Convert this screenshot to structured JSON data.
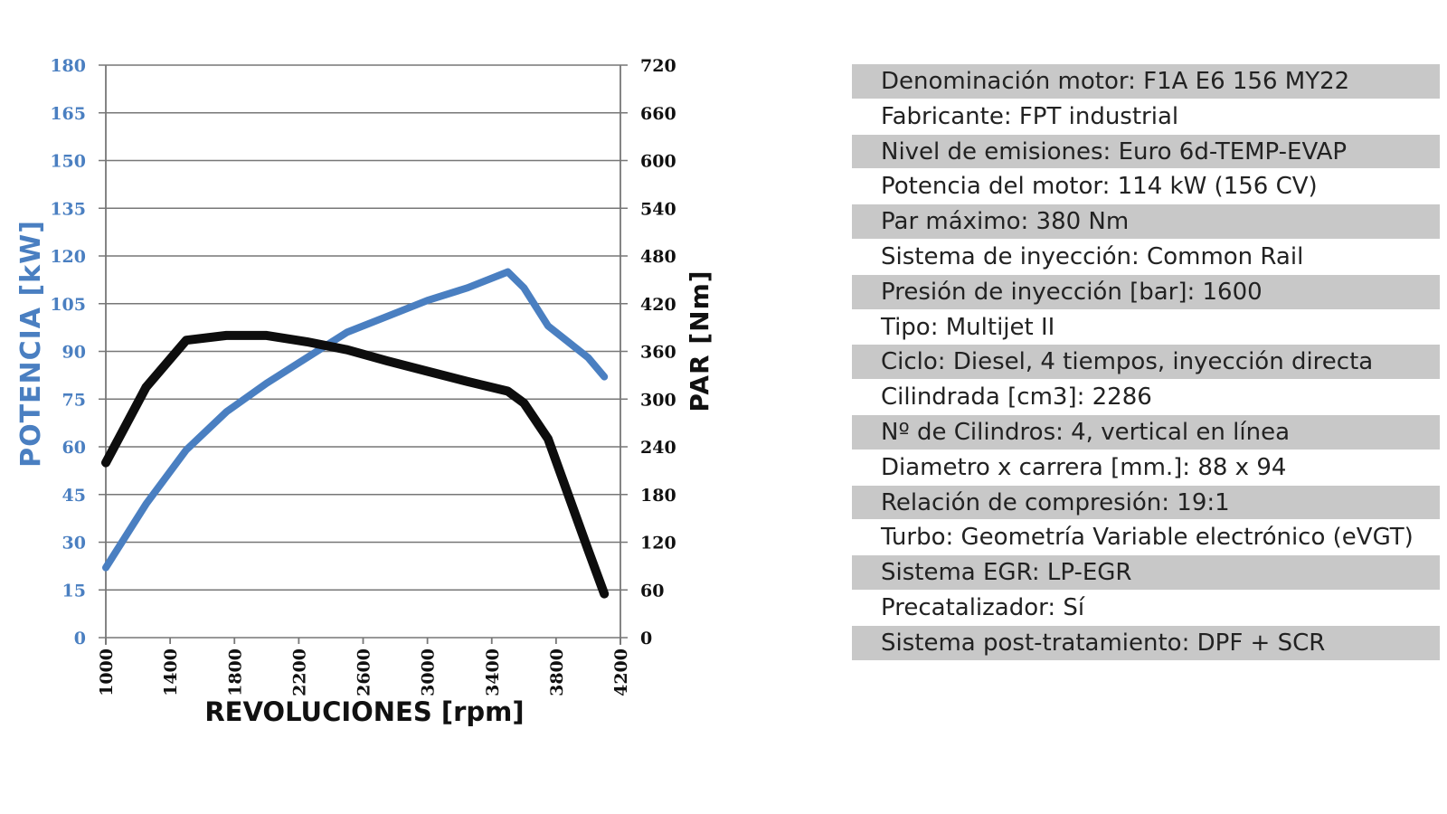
{
  "chart_data": {
    "type": "line",
    "xlabel": "REVOLUCIONES [rpm]",
    "ylabel_left": "POTENCIA [kW]",
    "ylabel_right": "PAR [Nm]",
    "x_ticks": [
      "1000",
      "1400",
      "1800",
      "2200",
      "2600",
      "3000",
      "3400",
      "3800",
      "4200"
    ],
    "y_left_ticks": [
      "0",
      "15",
      "30",
      "45",
      "60",
      "75",
      "90",
      "105",
      "120",
      "135",
      "150",
      "165",
      "180"
    ],
    "y_right_ticks": [
      "0",
      "60",
      "120",
      "180",
      "240",
      "300",
      "360",
      "420",
      "480",
      "540",
      "600",
      "660",
      "720"
    ],
    "xlim": [
      1000,
      4200
    ],
    "ylim_left": [
      0,
      180
    ],
    "ylim_right": [
      0,
      720
    ],
    "grid": true,
    "series": [
      {
        "name": "POTENCIA [kW]",
        "axis": "left",
        "color": "#4a7fc1",
        "x": [
          1000,
          1250,
          1500,
          1750,
          2000,
          2250,
          2500,
          2750,
          3000,
          3250,
          3500,
          3600,
          3750,
          4000,
          4100
        ],
        "values": [
          22,
          42,
          59,
          71,
          80,
          88,
          96,
          101,
          106,
          110,
          115,
          110,
          98,
          88,
          82
        ]
      },
      {
        "name": "PAR [Nm]",
        "axis": "right",
        "color": "#0d0d0d",
        "x": [
          1000,
          1250,
          1500,
          1750,
          2000,
          2250,
          2500,
          2750,
          3000,
          3250,
          3500,
          3600,
          3750,
          4000,
          4100
        ],
        "values": [
          220,
          315,
          374,
          380,
          380,
          372,
          362,
          348,
          335,
          322,
          310,
          295,
          250,
          110,
          55
        ]
      }
    ]
  },
  "specs": [
    "Denominación motor: F1A E6 156 MY22",
    "Fabricante: FPT industrial",
    "Nivel de emisiones: Euro 6d-TEMP-EVAP",
    "Potencia del motor: 114 kW (156 CV)",
    "Par máximo: 380 Nm",
    "Sistema de inyección: Common Rail",
    "Presión de inyección [bar]: 1600",
    "Tipo: Multijet II",
    "Ciclo: Diesel, 4 tiempos, inyección directa",
    "Cilindrada [cm3]: 2286",
    "Nº de Cilindros: 4, vertical en línea",
    "Diametro x carrera [mm.]: 88 x 94",
    "Relación de compresión: 19:1",
    "Turbo: Geometría Variable electrónico (eVGT)",
    "Sistema EGR: LP-EGR",
    "Precatalizador: Sí",
    "Sistema post-tratamiento: DPF + SCR"
  ]
}
